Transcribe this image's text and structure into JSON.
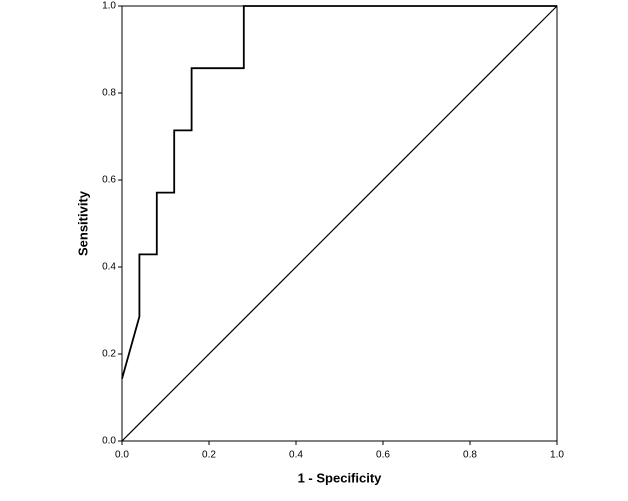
{
  "chart_data": {
    "type": "line",
    "x_label": "1 - Specificity",
    "y_label": "Sensitivity",
    "series": [
      {
        "color": "#000000",
        "x": [
          0,
          0.04,
          0.04,
          0.08,
          0.08,
          0.12,
          0.12,
          0.16,
          0.16,
          0.28,
          0.28,
          1.0
        ],
        "values": [
          0.143,
          0.286,
          0.429,
          0.429,
          0.571,
          0.571,
          0.714,
          0.714,
          0.857,
          0.857,
          1.0,
          1.0
        ]
      },
      {
        "color": "#000000",
        "x": [
          0,
          1.0
        ],
        "values": [
          0,
          1.0
        ]
      }
    ],
    "xlim": [
      0,
      1.0
    ],
    "ylim": [
      0,
      1.0
    ],
    "xticks": [
      {
        "value": 0,
        "label": "0.0"
      },
      0.2,
      0.4,
      0.6,
      0.8,
      {
        "value": 1.0,
        "label": "1.0"
      }
    ],
    "yticks": [
      {
        "value": 0,
        "label": "0.0"
      },
      0.2,
      0.4,
      0.6,
      0.8,
      {
        "value": 1.0,
        "label": "1.0"
      }
    ],
    "grid": false
  }
}
